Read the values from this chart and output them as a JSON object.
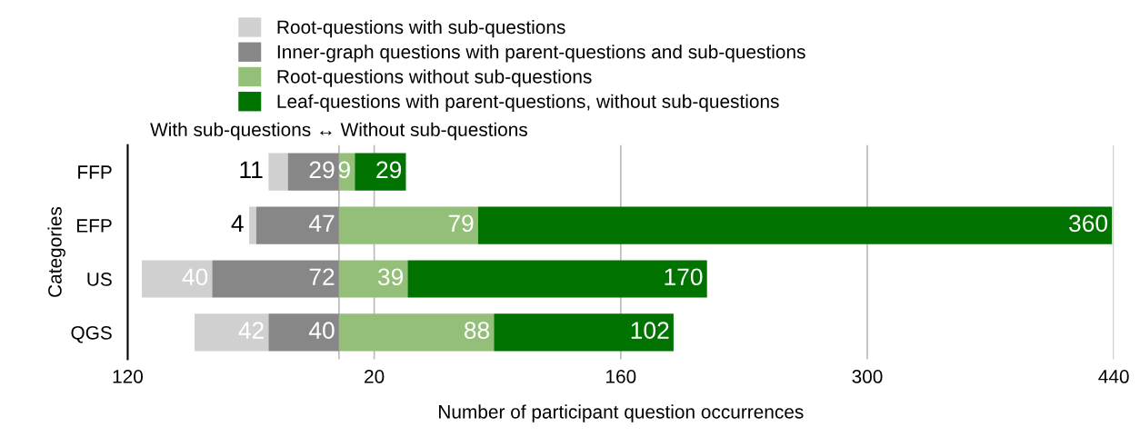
{
  "chart_data": {
    "type": "bar",
    "orientation": "horizontal",
    "categories": [
      "FFP",
      "EFP",
      "US",
      "QGS"
    ],
    "series": [
      {
        "name": "Root-questions with sub-questions",
        "color": "#d0d0d0",
        "values": [
          -11,
          -4,
          -40,
          -42
        ],
        "base": [
          -29,
          -47,
          -72,
          -40
        ],
        "value_labels": [
          null,
          null,
          "40",
          "42"
        ]
      },
      {
        "name": "Inner-graph questions with parent-questions and sub-questions",
        "color": "#878787",
        "values": [
          -29,
          -47,
          -72,
          -40
        ],
        "base": [
          0,
          0,
          0,
          0
        ],
        "value_labels": [
          "29",
          "47",
          "72",
          "40"
        ]
      },
      {
        "name": "Root-questions without sub-questions",
        "color": "#94bf78",
        "values": [
          9,
          79,
          39,
          88
        ],
        "base": [
          0,
          0,
          0,
          0
        ],
        "value_labels": [
          "9",
          "79",
          "39",
          "88"
        ]
      },
      {
        "name": "Leaf-questions with parent-questions, without sub-questions",
        "color": "#007300",
        "values": [
          29,
          360,
          170,
          102
        ],
        "base": [
          9,
          79,
          39,
          88
        ],
        "value_labels": [
          "29",
          "360",
          "170",
          "102"
        ]
      }
    ],
    "annotations": [
      {
        "text": "11",
        "x": -40,
        "y": "FFP"
      },
      {
        "text": "4",
        "x": -51,
        "y": "EFP"
      }
    ],
    "xlabel": "Number of participant question occurrences",
    "ylabel": "Categories",
    "xlim": [
      -120,
      440
    ],
    "xticks": [
      {
        "value": -120,
        "label": "120"
      },
      20,
      160,
      300,
      440
    ],
    "ref_lines": [
      {
        "axis": "x",
        "value": 0,
        "label": "With sub-questions ↔ Without sub-questions",
        "color": "#bbbbbb"
      }
    ],
    "grid": "x",
    "legend": "top"
  }
}
